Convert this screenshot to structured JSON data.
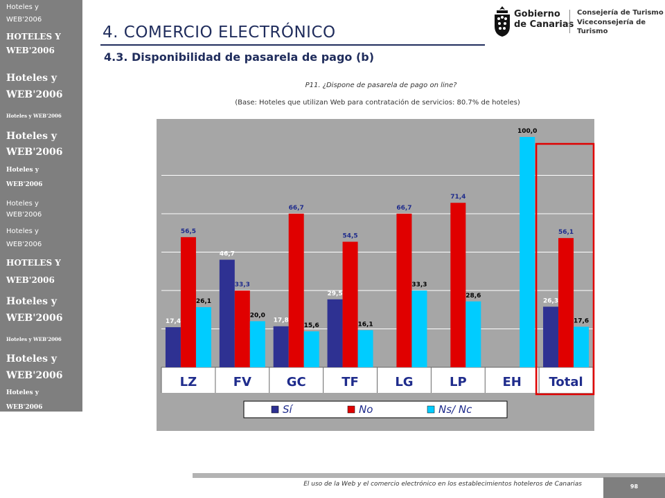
{
  "sidebar": {
    "items": [
      "Hoteles y",
      "WEB'2006",
      "HOTELES Y",
      "WEB'2006",
      "Hoteles y",
      "WEB'2006",
      "Hoteles y WEB'2006",
      "Hoteles y",
      "WEB'2006",
      "Hoteles y",
      "WEB'2006",
      "Hoteles y",
      "WEB'2006",
      "Hoteles y",
      "WEB'2006",
      "HOTELES Y",
      "WEB'2006",
      "Hoteles y",
      "WEB'2006",
      "Hoteles y WEB'2006",
      "Hoteles y",
      "WEB'2006",
      "Hoteles y",
      "WEB'2006"
    ]
  },
  "header": {
    "title": "4. COMERCIO ELECTRÓNICO",
    "subtitle": "4.3. Disponibilidad de pasarela de pago (b)"
  },
  "logos": {
    "gobierno_line1": "Gobierno",
    "gobierno_line2": "de Canarias",
    "consejeria_line1": "Consejería de Turismo",
    "consejeria_line2": "Viceconsejería de Turismo"
  },
  "question": "P11. ¿Dispone de pasarela de pago on line?",
  "base": "(Base: Hoteles que utilizan Web para contratación de servicios: 80.7% de hoteles)",
  "chart_data": {
    "type": "bar",
    "categories": [
      "LZ",
      "FV",
      "GC",
      "TF",
      "LG",
      "LP",
      "EH",
      "Total"
    ],
    "series": [
      {
        "name": "Sí",
        "color": "#2e3192",
        "values": [
          17.4,
          46.7,
          17.8,
          29.5,
          null,
          null,
          null,
          26.3
        ]
      },
      {
        "name": "No",
        "color": "#e00000",
        "values": [
          56.5,
          33.3,
          66.7,
          54.5,
          66.7,
          71.4,
          null,
          56.1
        ]
      },
      {
        "name": "Ns/ Nc",
        "color": "#00ccff",
        "values": [
          26.1,
          20.0,
          15.6,
          16.1,
          33.3,
          28.6,
          100.0,
          17.6
        ]
      }
    ],
    "data_labels": [
      [
        "17,4",
        "56,5",
        "26,1"
      ],
      [
        "46,7",
        "33,3",
        "20,0"
      ],
      [
        "17,8",
        "66,7",
        "15,6"
      ],
      [
        "29,5",
        "54,5",
        "16,1"
      ],
      [
        "",
        "66,7",
        "33,3"
      ],
      [
        "",
        "71,4",
        "28,6"
      ],
      [
        "",
        "",
        "100,0"
      ],
      [
        "26,3",
        "56,1",
        "17,6"
      ]
    ],
    "ylim": [
      0,
      100
    ],
    "grid": true,
    "legend_position": "bottom",
    "highlight_category": "Total",
    "colors": {
      "background": "#a6a6a6",
      "highlight": "#e00000"
    }
  },
  "footer": {
    "text": "El uso de la Web y el comercio electrónico en los establecimientos hoteleros de Canarias",
    "page": "98"
  }
}
